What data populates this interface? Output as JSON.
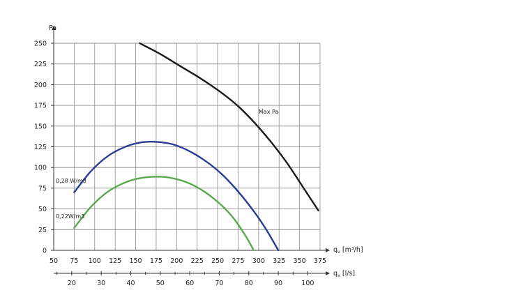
{
  "chart_data": {
    "type": "line",
    "y_axis": {
      "label": "Pa",
      "range": [
        0,
        250
      ],
      "ticks": [
        0,
        25,
        50,
        75,
        100,
        125,
        150,
        175,
        200,
        225,
        250
      ]
    },
    "x_axis": {
      "label": "q",
      "subscript": "v",
      "unit": "[m³/h]",
      "range": [
        50,
        375
      ],
      "ticks": [
        50,
        75,
        100,
        125,
        150,
        175,
        200,
        225,
        250,
        275,
        300,
        325,
        350,
        375
      ]
    },
    "x2_axis": {
      "label": "q",
      "subscript": "v",
      "unit": "[l/s]",
      "ticks": [
        20,
        30,
        40,
        50,
        60,
        70,
        80,
        90,
        100
      ]
    },
    "grid": true,
    "series": [
      {
        "name": "Max Pa",
        "color": "#1a1a1a",
        "label_pos": "upper-right",
        "points": [
          [
            155,
            250
          ],
          [
            180,
            237
          ],
          [
            205,
            222
          ],
          [
            230,
            207
          ],
          [
            255,
            190
          ],
          [
            275,
            174
          ],
          [
            295,
            154
          ],
          [
            315,
            131
          ],
          [
            335,
            105
          ],
          [
            355,
            75
          ],
          [
            373,
            48
          ]
        ]
      },
      {
        "name": "0,28 W/m3",
        "color": "#2a3b96",
        "label_pos": "left",
        "points": [
          [
            75,
            70
          ],
          [
            95,
            95
          ],
          [
            115,
            113
          ],
          [
            135,
            124
          ],
          [
            155,
            130
          ],
          [
            175,
            131
          ],
          [
            195,
            128
          ],
          [
            215,
            120
          ],
          [
            235,
            108
          ],
          [
            255,
            92
          ],
          [
            275,
            71
          ],
          [
            295,
            46
          ],
          [
            310,
            24
          ],
          [
            324,
            0
          ]
        ]
      },
      {
        "name": "0,22W/m3",
        "color": "#5aa84e",
        "label_pos": "left",
        "points": [
          [
            75,
            27
          ],
          [
            95,
            52
          ],
          [
            115,
            70
          ],
          [
            135,
            81
          ],
          [
            155,
            87
          ],
          [
            177,
            89
          ],
          [
            195,
            87
          ],
          [
            215,
            81
          ],
          [
            235,
            70
          ],
          [
            255,
            54
          ],
          [
            270,
            38
          ],
          [
            285,
            16
          ],
          [
            294,
            0
          ]
        ]
      }
    ]
  }
}
